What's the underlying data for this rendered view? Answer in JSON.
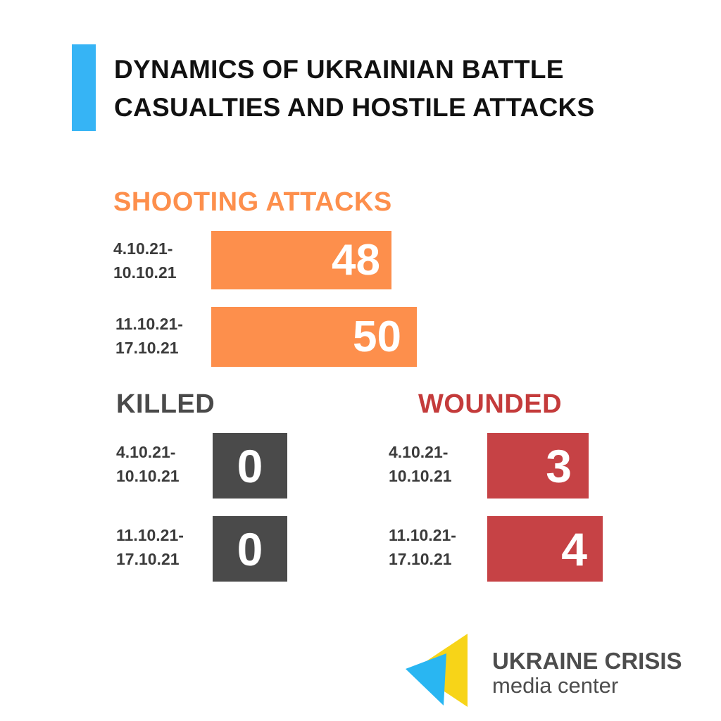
{
  "header": {
    "title_line1": "DYNAMICS OF UKRAINIAN BATTLE",
    "title_line2": "CASUALTIES AND HOSTILE ATTACKS"
  },
  "colors": {
    "accent_bar": "#36b4f5",
    "shooting": "#fd8f4c",
    "killed": "#4a4a4a",
    "wounded": "#c64245",
    "wounded_heading": "#c43b3b",
    "logo_yellow": "#f7d418",
    "logo_blue": "#29b6f2"
  },
  "chart_data": [
    {
      "type": "bar",
      "title": "SHOOTING  ATTACKS",
      "categories": [
        "4.10.21-\n10.10.21",
        "11.10.21-\n17.10.21"
      ],
      "values": [
        48,
        50
      ],
      "value_labels": [
        "48",
        "50"
      ]
    },
    {
      "type": "bar",
      "title": "KILLED",
      "categories": [
        "4.10.21-\n10.10.21",
        "11.10.21-\n17.10.21"
      ],
      "values": [
        0,
        0
      ],
      "value_labels": [
        "0",
        "0"
      ]
    },
    {
      "type": "bar",
      "title": "WOUNDED",
      "categories": [
        "4.10.21-\n10.10.21",
        "11.10.21-\n17.10.21"
      ],
      "values": [
        3,
        4
      ],
      "value_labels": [
        "3",
        "4"
      ]
    }
  ],
  "logo": {
    "name": "UKRAINE CRISIS",
    "subtitle": "media center",
    "icon": "triangles-logo-icon"
  }
}
